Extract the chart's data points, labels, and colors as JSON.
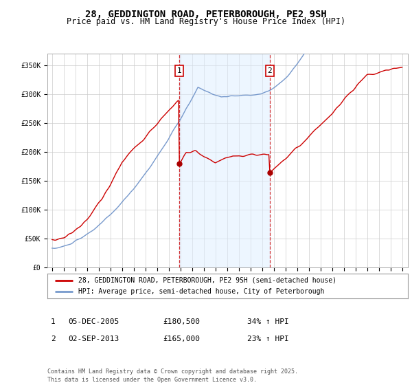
{
  "title": "28, GEDDINGTON ROAD, PETERBOROUGH, PE2 9SH",
  "subtitle": "Price paid vs. HM Land Registry's House Price Index (HPI)",
  "ylim": [
    0,
    370000
  ],
  "yticks": [
    0,
    50000,
    100000,
    150000,
    200000,
    250000,
    300000,
    350000
  ],
  "ytick_labels": [
    "£0",
    "£50K",
    "£100K",
    "£150K",
    "£200K",
    "£250K",
    "£300K",
    "£350K"
  ],
  "sale1_date_num": 2005.92,
  "sale1_price": 180500,
  "sale1_label": "05-DEC-2005",
  "sale1_price_str": "£180,500",
  "sale1_hpi": "34% ↑ HPI",
  "sale2_date_num": 2013.67,
  "sale2_price": 165000,
  "sale2_label": "02-SEP-2013",
  "sale2_price_str": "£165,000",
  "sale2_hpi": "23% ↑ HPI",
  "line_color_price": "#cc0000",
  "line_color_hpi": "#7799cc",
  "fill_color": "#ddeeff",
  "marker_color": "#aa0000",
  "sale_line_color": "#cc0000",
  "background_color": "#ffffff",
  "legend_label_price": "28, GEDDINGTON ROAD, PETERBOROUGH, PE2 9SH (semi-detached house)",
  "legend_label_hpi": "HPI: Average price, semi-detached house, City of Peterborough",
  "footer": "Contains HM Land Registry data © Crown copyright and database right 2025.\nThis data is licensed under the Open Government Licence v3.0.",
  "title_fontsize": 10,
  "subtitle_fontsize": 8.5,
  "tick_fontsize": 7,
  "legend_fontsize": 7,
  "footer_fontsize": 6
}
